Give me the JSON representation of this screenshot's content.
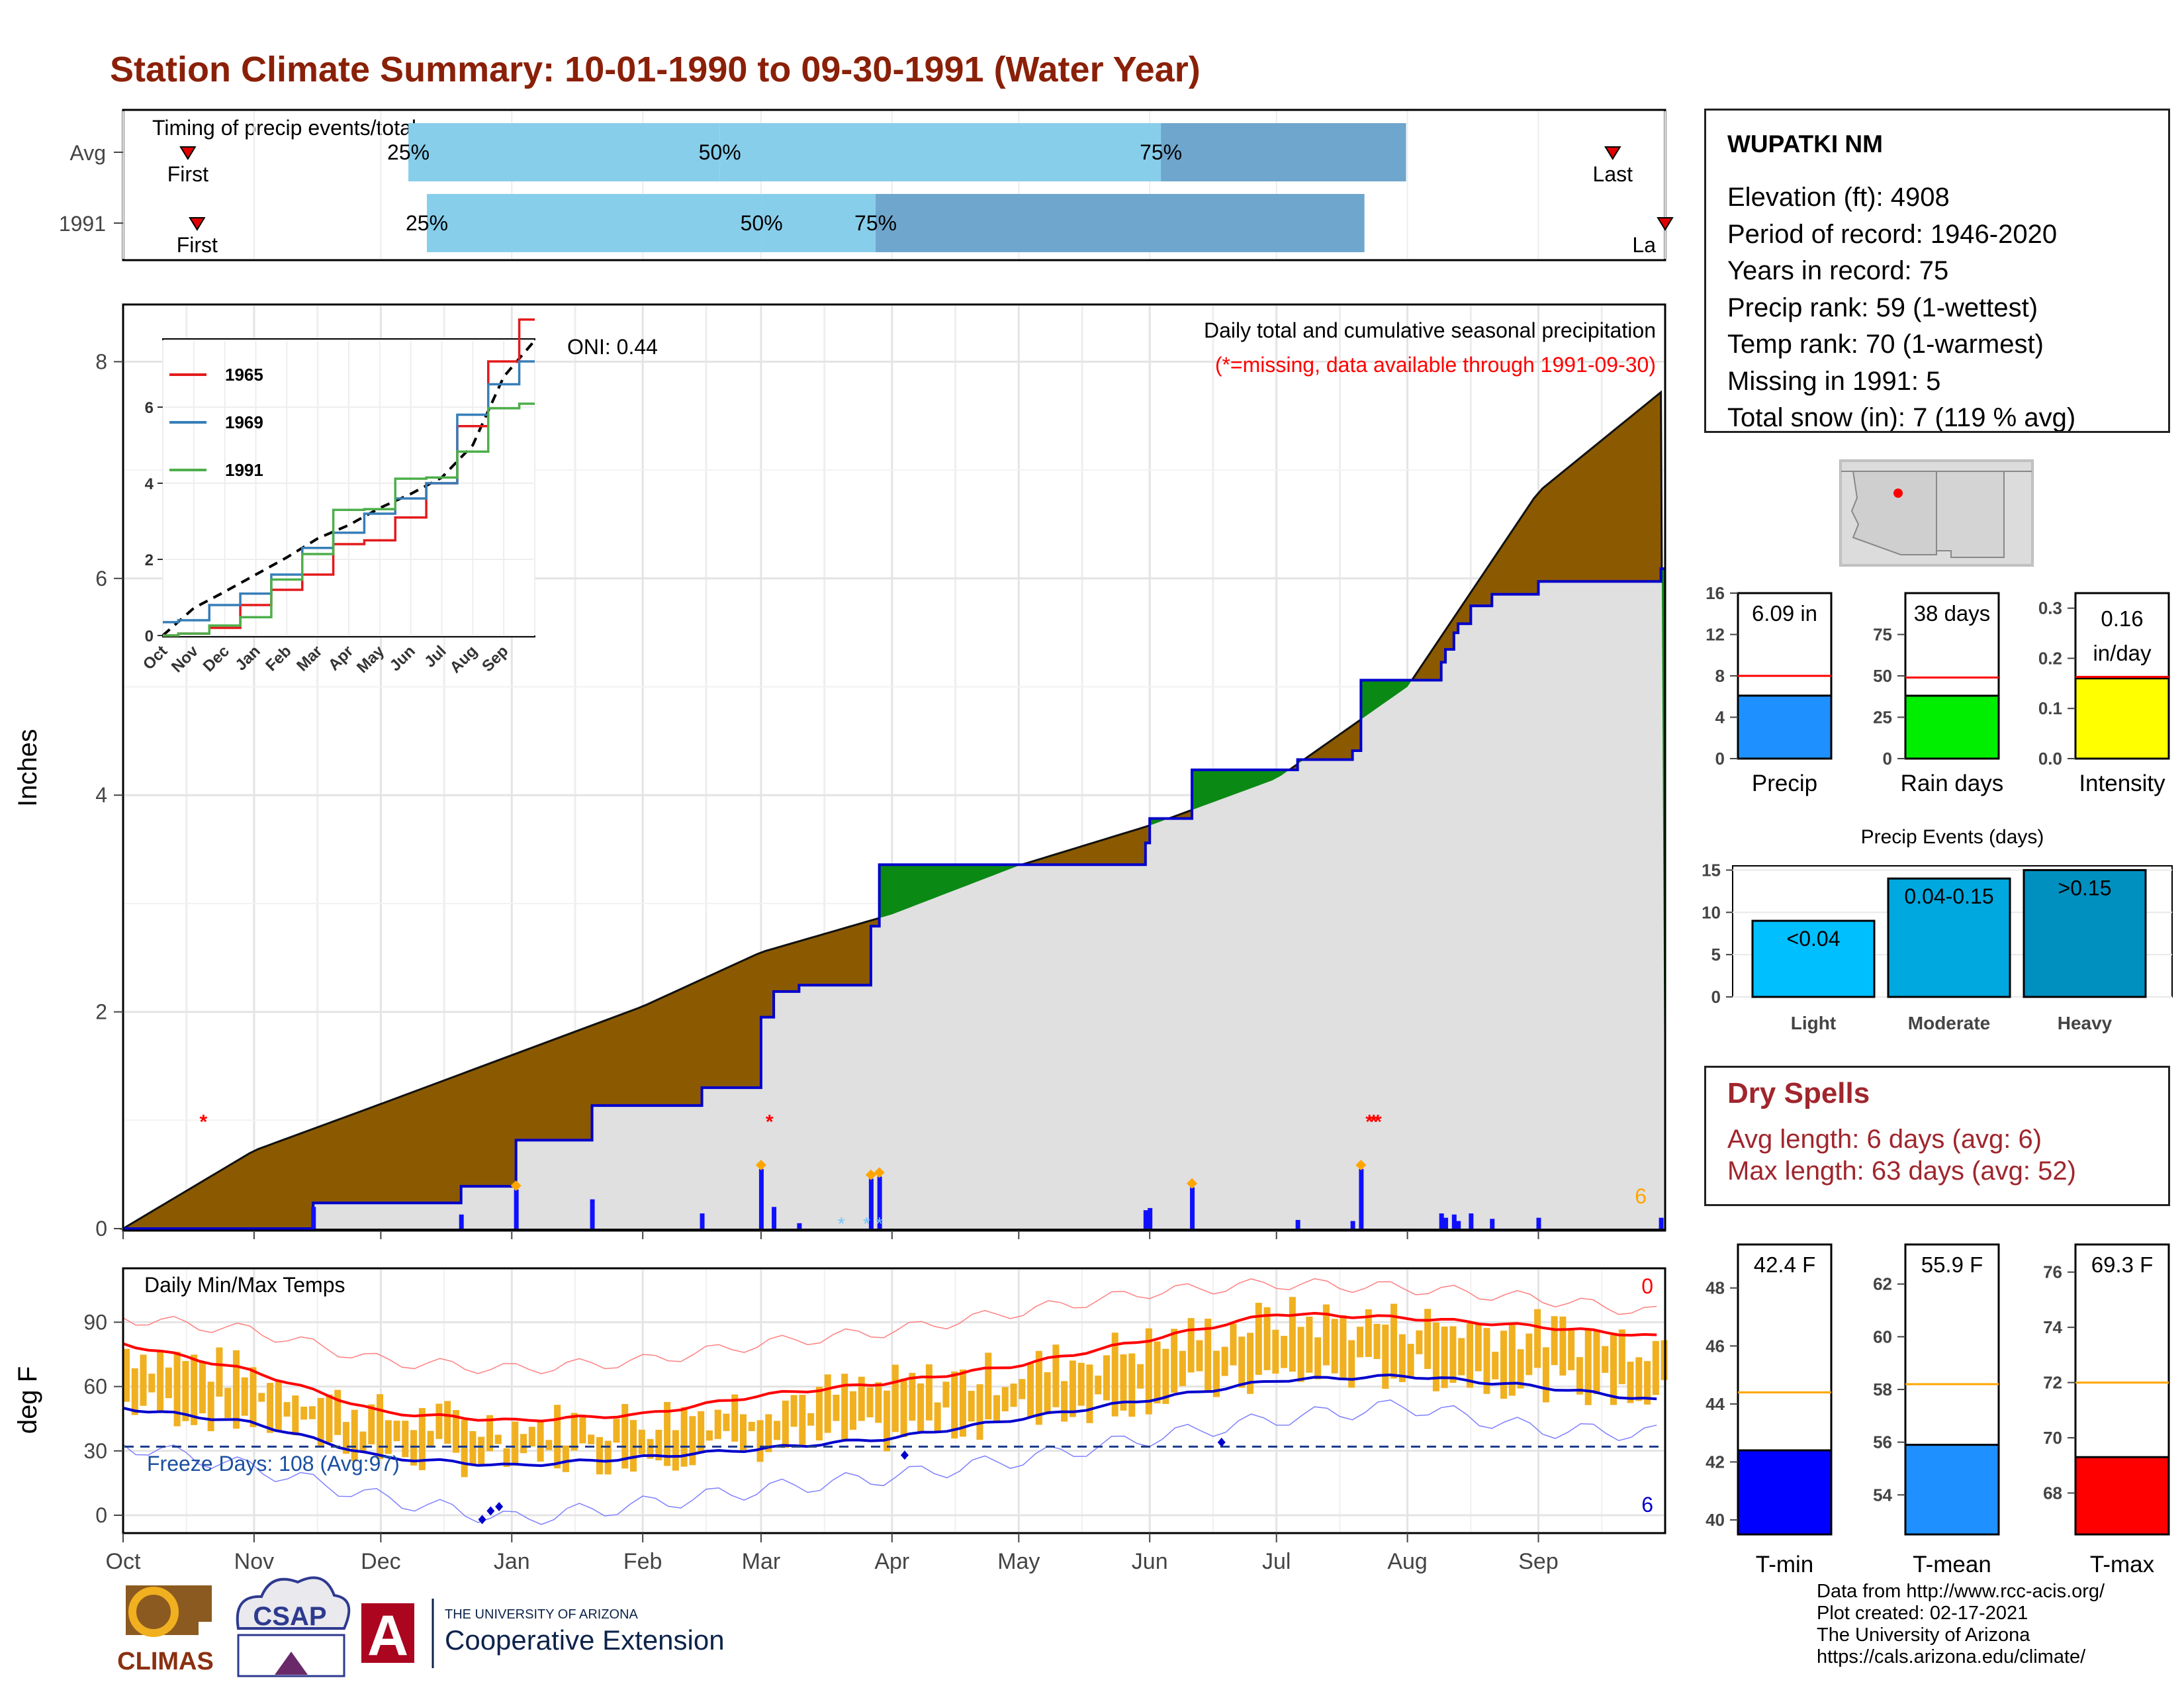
{
  "title": "Station Climate Summary: 10-01-1990 to 09-30-1991 (Water Year)",
  "colors": {
    "title": "#8b2008",
    "precip_fill": "#8b5a00",
    "surplus_fill": "#0a8a14",
    "cumulative_line": "#0000cc",
    "bar_light": "#87ceeb",
    "bar_dark": "#6fa6cd",
    "tmax": "#ff0000",
    "tmin": "#0000cc",
    "temp_bars": "#f0b020",
    "missing_marker": "#ff0000",
    "snow_marker": "#6ec6ff",
    "event_marker": "#ffa500"
  },
  "timing": {
    "label": "Timing of precip events/totals",
    "rows": [
      {
        "label": "Avg",
        "first": "First",
        "last": "Last",
        "p25": "25%",
        "p50": "50%",
        "p75": "75%",
        "q25": 0.387,
        "q50": 0.673,
        "q75": 0.832,
        "first_pos": 0.042,
        "last_pos": 0.966
      },
      {
        "label": "1991",
        "first": "First",
        "last": "La",
        "p25": "25%",
        "p50": "50%",
        "p75": "75%",
        "q25": 0.414,
        "q50": 0.488,
        "q75": 0.805,
        "first_pos": 0.048,
        "last_pos": 1.0
      }
    ]
  },
  "precip_panel": {
    "ylabel": "Inches",
    "header": "Daily total and cumulative seasonal precipitation",
    "missing_note": "(*=missing, data available through 1991-09-30)",
    "oni": "ONI: 0.44",
    "corner_count": "6",
    "yticks": [
      "0",
      "2",
      "4",
      "6",
      "8"
    ]
  },
  "inset": {
    "yticks": [
      "0",
      "2",
      "4",
      "6"
    ],
    "months": [
      "Oct",
      "Nov",
      "Dec",
      "Jan",
      "Feb",
      "Mar",
      "Apr",
      "May",
      "Jun",
      "Jul",
      "Aug",
      "Sep"
    ],
    "legend": [
      {
        "name": "1965",
        "color": "#e41a1c"
      },
      {
        "name": "1969",
        "color": "#377eb8"
      },
      {
        "name": "1991",
        "color": "#4daf4a"
      }
    ]
  },
  "temp_panel": {
    "ylabel": "deg F",
    "header": "Daily Min/Max Temps",
    "freeze": "Freeze Days: 108 (Avg:97)",
    "max_count": "0",
    "min_count": "6",
    "yticks": [
      "0",
      "30",
      "60",
      "90"
    ]
  },
  "months": [
    "Oct",
    "Nov",
    "Dec",
    "Jan",
    "Feb",
    "Mar",
    "Apr",
    "May",
    "Jun",
    "Jul",
    "Aug",
    "Sep"
  ],
  "station": {
    "name": "WUPATKI NM",
    "lines": [
      "Elevation (ft): 4908",
      "Period of record: 1946-2020",
      "Years in record: 75",
      "Precip rank: 59 (1-wettest)",
      "Temp rank: 70 (1-warmest)",
      "Missing in 1991: 5",
      "Total snow (in): 7 (119 % avg)"
    ]
  },
  "stat_bars": [
    {
      "label": "Precip",
      "value_text": "6.09 in",
      "value": 6.09,
      "avg": 8.0,
      "ymin": 0,
      "ymax": 16,
      "ticks": [
        "0",
        "4",
        "8",
        "12",
        "16"
      ],
      "color": "#1e90ff"
    },
    {
      "label": "Rain days",
      "value_text": "38 days",
      "value": 38,
      "avg": 49,
      "ymin": 0,
      "ymax": 100,
      "ticks": [
        "0",
        "25",
        "50",
        "75"
      ],
      "color": "#00ee00"
    },
    {
      "label": "Intensity",
      "value_text": "0.16\nin/day",
      "value": 0.16,
      "avg": 0.163,
      "ymin": 0,
      "ymax": 0.33,
      "ticks": [
        "0.0",
        "0.1",
        "0.2",
        "0.3"
      ],
      "color": "#ffff00"
    }
  ],
  "events": {
    "title": "Precip Events (days)",
    "ticks": [
      "0",
      "5",
      "10",
      "15"
    ],
    "bars": [
      {
        "category": "Light",
        "label": "<0.04",
        "value": 9,
        "color": "#00bfff"
      },
      {
        "category": "Moderate",
        "label": "0.04-0.15",
        "value": 14,
        "color": "#00a8e0"
      },
      {
        "category": "Heavy",
        "label": ">0.15",
        "value": 15,
        "color": "#0090c0"
      }
    ]
  },
  "dry_spells": {
    "title": "Dry Spells",
    "avg_line": "Avg length: 6 days (avg: 6)",
    "max_line": "Max length: 63 days (avg: 52)"
  },
  "temp_bars": [
    {
      "label": "T-min",
      "value_text": "42.4 F",
      "value": 42.4,
      "avg": 44.4,
      "ymin": 39.5,
      "ymax": 49.5,
      "ticks": [
        "40",
        "42",
        "44",
        "46",
        "48"
      ],
      "color": "#0000ff"
    },
    {
      "label": "T-mean",
      "value_text": "55.9 F",
      "value": 55.9,
      "avg": 58.2,
      "ymin": 52.5,
      "ymax": 63.5,
      "ticks": [
        "54",
        "56",
        "58",
        "60",
        "62"
      ],
      "color": "#1e90ff"
    },
    {
      "label": "T-max",
      "value_text": "69.3 F",
      "value": 69.3,
      "avg": 72.0,
      "ymin": 66.5,
      "ymax": 77,
      "ticks": [
        "68",
        "70",
        "72",
        "74",
        "76"
      ],
      "color": "#ff0000"
    }
  ],
  "credits": [
    "Data from http://www.rcc-acis.org/",
    "Plot created: 02-17-2021",
    "The University of Arizona",
    "https://cals.arizona.edu/climate/"
  ],
  "logos": {
    "climas": "CLIMAS",
    "csap": "CSAP",
    "ua_small": "THE UNIVERSITY OF ARIZONA",
    "ua_big": "Cooperative Extension"
  },
  "chart_data": [
    {
      "type": "bar",
      "title": "Timing of precip events/totals",
      "categories": [
        "Avg",
        "1991"
      ],
      "series": [
        {
          "name": "25%",
          "values": [
            0.387,
            0.414
          ]
        },
        {
          "name": "50%",
          "values": [
            0.673,
            0.488
          ]
        },
        {
          "name": "75%",
          "values": [
            0.832,
            0.805
          ]
        }
      ]
    },
    {
      "type": "area",
      "title": "Daily total and cumulative seasonal precipitation",
      "ylabel": "Inches",
      "ylim": [
        0,
        8.5
      ],
      "x": [
        "Oct",
        "Nov",
        "Dec",
        "Jan",
        "Feb",
        "Mar",
        "Apr",
        "May",
        "Jun",
        "Jul",
        "Aug",
        "Sep",
        "Sep-30"
      ],
      "series": [
        {
          "name": "average cumulative",
          "values": [
            0.0,
            0.72,
            1.15,
            1.6,
            2.05,
            2.55,
            2.9,
            3.35,
            3.72,
            4.15,
            5.0,
            6.8,
            7.75
          ]
        },
        {
          "name": "1991 cumulative",
          "values": [
            0.0,
            0.05,
            0.26,
            0.48,
            1.47,
            2.14,
            3.3,
            3.32,
            4.12,
            4.15,
            4.83,
            5.97,
            6.09
          ]
        }
      ],
      "daily_precip": [
        {
          "date": "1990-11-15",
          "value": 0.2
        },
        {
          "date": "1990-12-20",
          "value": 0.13
        },
        {
          "date": "1991-01-02",
          "value": 0.36
        },
        {
          "date": "1991-01-20",
          "value": 0.27
        },
        {
          "date": "1991-02-15",
          "value": 0.14
        },
        {
          "date": "1991-03-01",
          "value": 0.55
        },
        {
          "date": "1991-03-04",
          "value": 0.2
        },
        {
          "date": "1991-03-10",
          "value": 0.05
        },
        {
          "date": "1991-03-27",
          "value": 0.46
        },
        {
          "date": "1991-03-29",
          "value": 0.48
        },
        {
          "date": "1991-05-31",
          "value": 0.17
        },
        {
          "date": "1991-06-01",
          "value": 0.19
        },
        {
          "date": "1991-06-11",
          "value": 0.38
        },
        {
          "date": "1991-07-06",
          "value": 0.08
        },
        {
          "date": "1991-07-19",
          "value": 0.07
        },
        {
          "date": "1991-07-21",
          "value": 0.55
        },
        {
          "date": "1991-08-09",
          "value": 0.14
        },
        {
          "date": "1991-08-10",
          "value": 0.1
        },
        {
          "date": "1991-08-12",
          "value": 0.13
        },
        {
          "date": "1991-08-13",
          "value": 0.07
        },
        {
          "date": "1991-08-16",
          "value": 0.14
        },
        {
          "date": "1991-08-21",
          "value": 0.09
        },
        {
          "date": "1991-09-01",
          "value": 0.1
        },
        {
          "date": "1991-09-30",
          "value": 0.1
        }
      ],
      "missing_dates": [
        "1990-10-20",
        "1991-03-03",
        "1991-07-23",
        "1991-07-24",
        "1991-07-25"
      ]
    },
    {
      "type": "line",
      "title": "",
      "ylim": [
        0,
        8.5
      ],
      "x": [
        "Oct",
        "Nov",
        "Dec",
        "Jan",
        "Feb",
        "Mar",
        "Apr",
        "May",
        "Jun",
        "Jul",
        "Aug",
        "Sep",
        "Sep-30"
      ],
      "series": [
        {
          "name": "1965",
          "values": [
            0.0,
            0.05,
            0.2,
            0.8,
            1.2,
            1.6,
            2.4,
            2.5,
            3.1,
            4.0,
            5.5,
            7.2,
            8.3
          ]
        },
        {
          "name": "1969",
          "values": [
            0.35,
            0.4,
            0.8,
            1.1,
            1.6,
            2.3,
            2.7,
            3.2,
            3.6,
            4.0,
            5.8,
            6.6,
            7.2
          ]
        },
        {
          "name": "1991",
          "values": [
            0.0,
            0.05,
            0.26,
            0.48,
            1.47,
            2.14,
            3.3,
            3.32,
            4.12,
            4.15,
            4.83,
            5.97,
            6.09
          ]
        }
      ]
    },
    {
      "type": "line",
      "title": "Daily Min/Max Temps",
      "ylabel": "deg F",
      "ylim": [
        -5,
        112
      ],
      "x": [
        "Oct",
        "Nov",
        "Dec",
        "Jan",
        "Feb",
        "Mar",
        "Apr",
        "May",
        "Jun",
        "Jul",
        "Aug",
        "Sep",
        "Sep-30"
      ],
      "series": [
        {
          "name": "avg max",
          "values": [
            80,
            67,
            48,
            44,
            47,
            56,
            62,
            70,
            82,
            94,
            92,
            88,
            83
          ]
        },
        {
          "name": "avg min",
          "values": [
            50,
            43,
            27,
            23,
            27,
            31,
            36,
            45,
            54,
            63,
            65,
            60,
            53
          ]
        },
        {
          "name": "record max",
          "values": [
            92,
            86,
            72,
            68,
            72,
            80,
            86,
            95,
            104,
            108,
            106,
            101,
            94
          ]
        },
        {
          "name": "record min",
          "values": [
            33,
            22,
            8,
            -2,
            5,
            12,
            18,
            26,
            36,
            45,
            51,
            40,
            38
          ]
        }
      ]
    }
  ]
}
